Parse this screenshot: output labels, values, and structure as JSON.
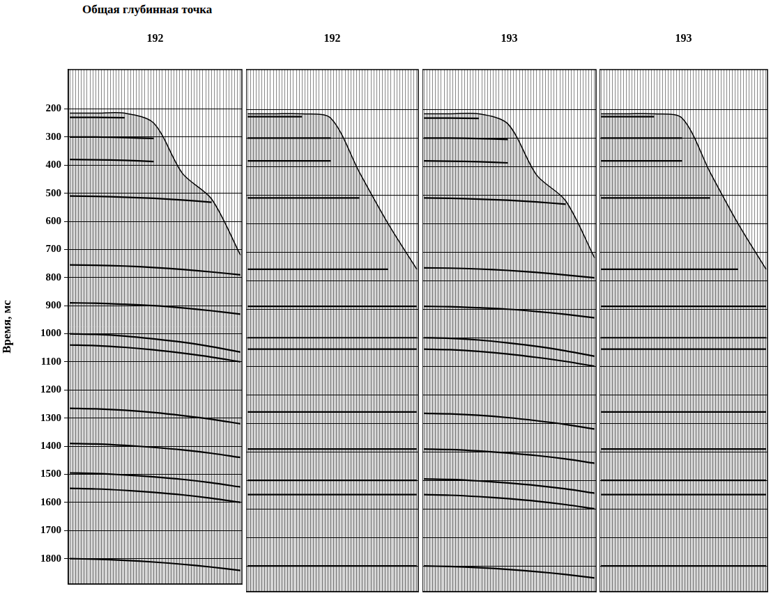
{
  "title": "Общая глубинная точка",
  "chart_data": [
    {
      "type": "line",
      "title": "192",
      "ylabel": "Время, мс",
      "x": [
        1,
        10,
        20,
        30,
        40,
        50,
        60
      ],
      "series": [
        {
          "type": "area",
          "color": "#000000",
          "line_style": "solid",
          "values": [
            215,
            215,
            215,
            250,
            430,
            520,
            720
          ]
        },
        {
          "color": "#000000",
          "line_style": "solid",
          "values": [
            230,
            230,
            231,
            null,
            null,
            null,
            null
          ]
        },
        {
          "color": "#000000",
          "line_style": "solid",
          "values": [
            300,
            300,
            302,
            305,
            null,
            null,
            null
          ]
        },
        {
          "color": "#000000",
          "line_style": "solid",
          "values": [
            380,
            381,
            383,
            387,
            null,
            null,
            null
          ]
        },
        {
          "color": "#000000",
          "line_style": "solid",
          "values": [
            510,
            511,
            514,
            518,
            524,
            532,
            null
          ]
        },
        {
          "color": "#000000",
          "line_style": "solid",
          "values": [
            755,
            756,
            759,
            764,
            771,
            780,
            790
          ]
        },
        {
          "color": "#000000",
          "line_style": "solid",
          "values": [
            890,
            891,
            895,
            900,
            908,
            918,
            930
          ]
        },
        {
          "color": "#000000",
          "line_style": "solid",
          "values": [
            1000,
            1002,
            1008,
            1018,
            1030,
            1046,
            1065
          ]
        },
        {
          "color": "#000000",
          "line_style": "solid",
          "values": [
            1040,
            1042,
            1048,
            1057,
            1069,
            1083,
            1100
          ]
        },
        {
          "color": "#000000",
          "line_style": "solid",
          "values": [
            1265,
            1267,
            1272,
            1280,
            1291,
            1304,
            1320
          ]
        },
        {
          "color": "#000000",
          "line_style": "solid",
          "values": [
            1390,
            1392,
            1397,
            1404,
            1413,
            1425,
            1440
          ]
        },
        {
          "color": "#000000",
          "line_style": "solid",
          "values": [
            1495,
            1497,
            1502,
            1509,
            1518,
            1530,
            1545
          ]
        },
        {
          "color": "#000000",
          "line_style": "solid",
          "values": [
            1550,
            1552,
            1557,
            1564,
            1573,
            1585,
            1600
          ]
        },
        {
          "color": "#000000",
          "line_style": "solid",
          "values": [
            1800,
            1802,
            1806,
            1812,
            1820,
            1830,
            1842
          ]
        }
      ],
      "xlim": [
        0.5,
        60.5
      ],
      "xticks": [
        1,
        2,
        3,
        4,
        5,
        6,
        7,
        8,
        9,
        10,
        11,
        12,
        13,
        14,
        15,
        16,
        17,
        18,
        19,
        20,
        21,
        22,
        23,
        24,
        25,
        26,
        27,
        28,
        29,
        30,
        31,
        32,
        33,
        34,
        35,
        36,
        37,
        38,
        39,
        40,
        41,
        42,
        43,
        44,
        45,
        46,
        47,
        48,
        49,
        50,
        51,
        52,
        53,
        54,
        55,
        56,
        57,
        58,
        59,
        60
      ],
      "ylim": [
        1890,
        60
      ],
      "yticks": [
        200,
        300,
        400,
        500,
        600,
        700,
        800,
        900,
        1000,
        1100,
        1200,
        1300,
        1400,
        1500,
        1600,
        1700,
        1800
      ],
      "grid": true,
      "tick_labels": "y"
    },
    {
      "type": "line",
      "title": "192",
      "x": [
        1,
        10,
        20,
        30,
        40,
        50,
        60
      ],
      "series": [
        {
          "type": "area",
          "color": "#000000",
          "line_style": "solid",
          "values": [
            215,
            215,
            215,
            230,
            420,
            600,
            760
          ]
        },
        {
          "color": "#000000",
          "line_style": "solid",
          "values": [
            225,
            225,
            225,
            null,
            null,
            null,
            null
          ]
        },
        {
          "color": "#000000",
          "line_style": "solid",
          "values": [
            300,
            300,
            300,
            300,
            null,
            null,
            null
          ]
        },
        {
          "color": "#000000",
          "line_style": "solid",
          "values": [
            380,
            380,
            380,
            380,
            null,
            null,
            null
          ]
        },
        {
          "color": "#000000",
          "line_style": "solid",
          "values": [
            510,
            510,
            510,
            510,
            510,
            null,
            null
          ]
        },
        {
          "color": "#000000",
          "line_style": "solid",
          "values": [
            760,
            760,
            760,
            760,
            760,
            760,
            null
          ]
        },
        {
          "color": "#000000",
          "line_style": "solid",
          "values": [
            890,
            890,
            890,
            890,
            890,
            890,
            890
          ]
        },
        {
          "color": "#000000",
          "line_style": "solid",
          "values": [
            1000,
            1000,
            1000,
            1000,
            1000,
            1000,
            1000
          ]
        },
        {
          "color": "#000000",
          "line_style": "solid",
          "values": [
            1040,
            1040,
            1040,
            1040,
            1040,
            1040,
            1040
          ]
        },
        {
          "color": "#000000",
          "line_style": "solid",
          "values": [
            1260,
            1260,
            1260,
            1260,
            1260,
            1260,
            1260
          ]
        },
        {
          "color": "#000000",
          "line_style": "solid",
          "values": [
            1390,
            1390,
            1390,
            1390,
            1390,
            1390,
            1390
          ]
        },
        {
          "color": "#000000",
          "line_style": "solid",
          "values": [
            1500,
            1500,
            1500,
            1500,
            1500,
            1500,
            1500
          ]
        },
        {
          "color": "#000000",
          "line_style": "solid",
          "values": [
            1550,
            1550,
            1550,
            1550,
            1550,
            1550,
            1550
          ]
        },
        {
          "color": "#000000",
          "line_style": "solid",
          "values": [
            1800,
            1800,
            1800,
            1800,
            1800,
            1800,
            1800
          ]
        }
      ],
      "xlim": [
        0.5,
        60.5
      ],
      "xticks": [
        1,
        2,
        3,
        4,
        5,
        6,
        7,
        8,
        9,
        10,
        11,
        12,
        13,
        14,
        15,
        16,
        17,
        18,
        19,
        20,
        21,
        22,
        23,
        24,
        25,
        26,
        27,
        28,
        29,
        30,
        31,
        32,
        33,
        34,
        35,
        36,
        37,
        38,
        39,
        40,
        41,
        42,
        43,
        44,
        45,
        46,
        47,
        48,
        49,
        50,
        51,
        52,
        53,
        54,
        55,
        56,
        57,
        58,
        59,
        60
      ],
      "ylim": [
        1890,
        60
      ],
      "yticks": [
        200,
        300,
        400,
        500,
        600,
        700,
        800,
        900,
        1000,
        1100,
        1200,
        1300,
        1400,
        1500,
        1600,
        1700,
        1800
      ],
      "grid": true,
      "tick_labels": false
    },
    {
      "type": "line",
      "title": "193",
      "x": [
        1,
        10,
        20,
        30,
        40,
        50,
        60
      ],
      "series": [
        {
          "type": "area",
          "color": "#000000",
          "line_style": "solid",
          "values": [
            215,
            215,
            215,
            250,
            430,
            520,
            720
          ]
        },
        {
          "color": "#000000",
          "line_style": "solid",
          "values": [
            230,
            230,
            231,
            null,
            null,
            null,
            null
          ]
        },
        {
          "color": "#000000",
          "line_style": "solid",
          "values": [
            300,
            300,
            302,
            305,
            null,
            null,
            null
          ]
        },
        {
          "color": "#000000",
          "line_style": "solid",
          "values": [
            380,
            381,
            383,
            387,
            null,
            null,
            null
          ]
        },
        {
          "color": "#000000",
          "line_style": "solid",
          "values": [
            510,
            511,
            514,
            518,
            524,
            532,
            null
          ]
        },
        {
          "color": "#000000",
          "line_style": "solid",
          "values": [
            755,
            756,
            759,
            764,
            771,
            780,
            790
          ]
        },
        {
          "color": "#000000",
          "line_style": "solid",
          "values": [
            890,
            891,
            895,
            900,
            908,
            918,
            930
          ]
        },
        {
          "color": "#000000",
          "line_style": "solid",
          "values": [
            1000,
            1002,
            1008,
            1018,
            1030,
            1046,
            1065
          ]
        },
        {
          "color": "#000000",
          "line_style": "solid",
          "values": [
            1040,
            1042,
            1048,
            1057,
            1069,
            1083,
            1100
          ]
        },
        {
          "color": "#000000",
          "line_style": "solid",
          "values": [
            1265,
            1267,
            1272,
            1280,
            1291,
            1304,
            1320
          ]
        },
        {
          "color": "#000000",
          "line_style": "solid",
          "values": [
            1390,
            1392,
            1397,
            1404,
            1413,
            1425,
            1440
          ]
        },
        {
          "color": "#000000",
          "line_style": "solid",
          "values": [
            1495,
            1497,
            1502,
            1509,
            1518,
            1530,
            1545
          ]
        },
        {
          "color": "#000000",
          "line_style": "solid",
          "values": [
            1550,
            1552,
            1557,
            1564,
            1573,
            1585,
            1600
          ]
        },
        {
          "color": "#000000",
          "line_style": "solid",
          "values": [
            1800,
            1802,
            1806,
            1812,
            1820,
            1830,
            1842
          ]
        }
      ],
      "xlim": [
        0.5,
        60.5
      ],
      "xticks": [
        1,
        2,
        3,
        4,
        5,
        6,
        7,
        8,
        9,
        10,
        11,
        12,
        13,
        14,
        15,
        16,
        17,
        18,
        19,
        20,
        21,
        22,
        23,
        24,
        25,
        26,
        27,
        28,
        29,
        30,
        31,
        32,
        33,
        34,
        35,
        36,
        37,
        38,
        39,
        40,
        41,
        42,
        43,
        44,
        45,
        46,
        47,
        48,
        49,
        50,
        51,
        52,
        53,
        54,
        55,
        56,
        57,
        58,
        59,
        60
      ],
      "ylim": [
        1890,
        60
      ],
      "yticks": [
        200,
        300,
        400,
        500,
        600,
        700,
        800,
        900,
        1000,
        1100,
        1200,
        1300,
        1400,
        1500,
        1600,
        1700,
        1800
      ],
      "grid": true,
      "tick_labels": false
    },
    {
      "type": "line",
      "title": "193",
      "x": [
        1,
        10,
        20,
        30,
        40,
        50,
        60
      ],
      "series": [
        {
          "type": "area",
          "color": "#000000",
          "line_style": "solid",
          "values": [
            215,
            215,
            215,
            230,
            420,
            600,
            760
          ]
        },
        {
          "color": "#000000",
          "line_style": "solid",
          "values": [
            225,
            225,
            225,
            null,
            null,
            null,
            null
          ]
        },
        {
          "color": "#000000",
          "line_style": "solid",
          "values": [
            300,
            300,
            300,
            300,
            null,
            null,
            null
          ]
        },
        {
          "color": "#000000",
          "line_style": "solid",
          "values": [
            380,
            380,
            380,
            380,
            null,
            null,
            null
          ]
        },
        {
          "color": "#000000",
          "line_style": "solid",
          "values": [
            510,
            510,
            510,
            510,
            510,
            null,
            null
          ]
        },
        {
          "color": "#000000",
          "line_style": "solid",
          "values": [
            760,
            760,
            760,
            760,
            760,
            760,
            null
          ]
        },
        {
          "color": "#000000",
          "line_style": "solid",
          "values": [
            890,
            890,
            890,
            890,
            890,
            890,
            890
          ]
        },
        {
          "color": "#000000",
          "line_style": "solid",
          "values": [
            1000,
            1000,
            1000,
            1000,
            1000,
            1000,
            1000
          ]
        },
        {
          "color": "#000000",
          "line_style": "solid",
          "values": [
            1040,
            1040,
            1040,
            1040,
            1040,
            1040,
            1040
          ]
        },
        {
          "color": "#000000",
          "line_style": "solid",
          "values": [
            1260,
            1260,
            1260,
            1260,
            1260,
            1260,
            1260
          ]
        },
        {
          "color": "#000000",
          "line_style": "solid",
          "values": [
            1390,
            1390,
            1390,
            1390,
            1390,
            1390,
            1390
          ]
        },
        {
          "color": "#000000",
          "line_style": "solid",
          "values": [
            1500,
            1500,
            1500,
            1500,
            1500,
            1500,
            1500
          ]
        },
        {
          "color": "#000000",
          "line_style": "solid",
          "values": [
            1550,
            1550,
            1550,
            1550,
            1550,
            1550,
            1550
          ]
        },
        {
          "color": "#000000",
          "line_style": "solid",
          "values": [
            1800,
            1800,
            1800,
            1800,
            1800,
            1800,
            1800
          ]
        }
      ],
      "xlim": [
        0.5,
        60.5
      ],
      "xticks": [
        1,
        2,
        3,
        4,
        5,
        6,
        7,
        8,
        9,
        10,
        11,
        12,
        13,
        14,
        15,
        16,
        17,
        18,
        19,
        20,
        21,
        22,
        23,
        24,
        25,
        26,
        27,
        28,
        29,
        30,
        31,
        32,
        33,
        34,
        35,
        36,
        37,
        38,
        39,
        40,
        41,
        42,
        43,
        44,
        45,
        46,
        47,
        48,
        49,
        50,
        51,
        52,
        53,
        54,
        55,
        56,
        57,
        58,
        59,
        60
      ],
      "ylim": [
        1890,
        60
      ],
      "yticks": [
        200,
        300,
        400,
        500,
        600,
        700,
        800,
        900,
        1000,
        1100,
        1200,
        1300,
        1400,
        1500,
        1600,
        1700,
        1800
      ],
      "grid": true,
      "tick_labels": false
    }
  ]
}
